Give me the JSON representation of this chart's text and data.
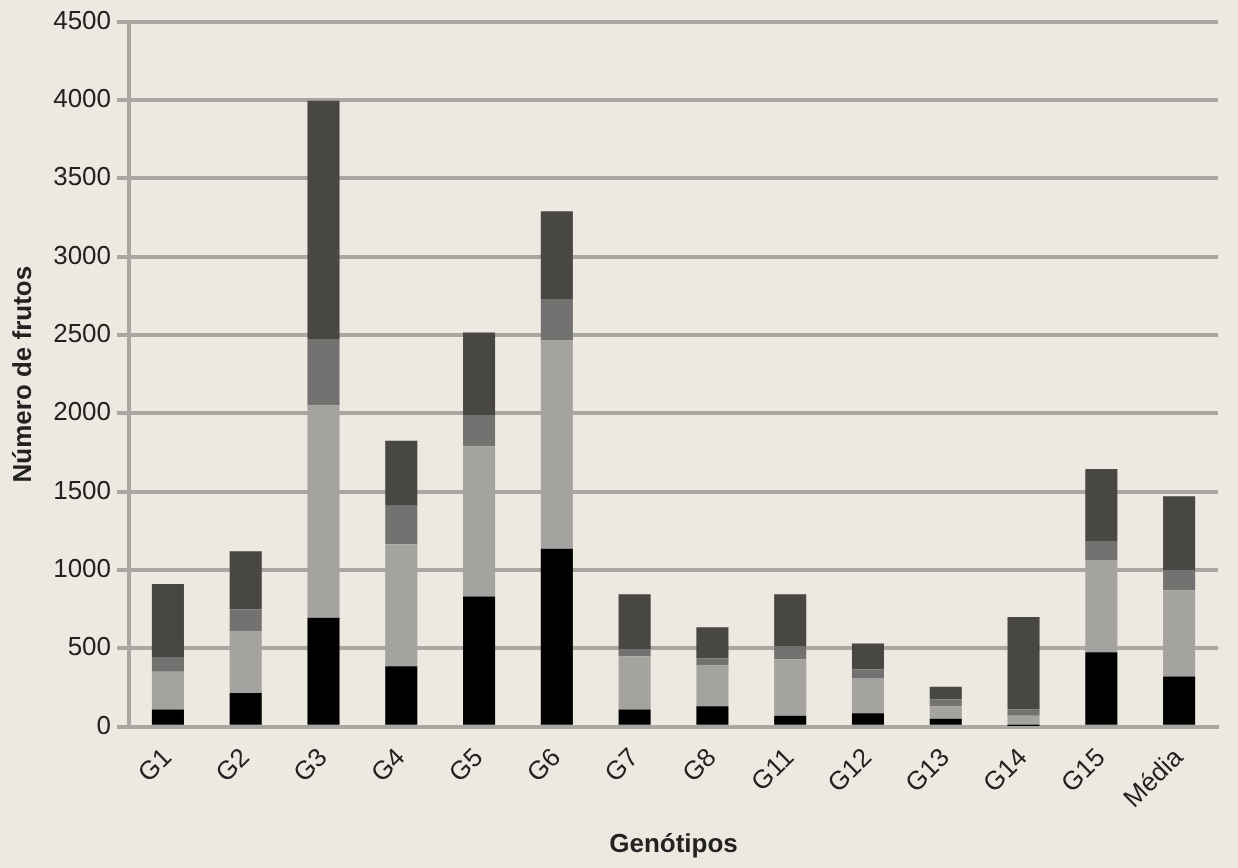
{
  "chart_data": {
    "type": "bar",
    "stacked": true,
    "xlabel": "Genótipos",
    "ylabel": "Número de frutos",
    "categories": [
      "G1",
      "G2",
      "G3",
      "G4",
      "G5",
      "G6",
      "G7",
      "G8",
      "G11",
      "G12",
      "G13",
      "G14",
      "G15",
      "Média"
    ],
    "series": [
      {
        "color": "#000000",
        "values": [
          110,
          215,
          695,
          385,
          830,
          1135,
          110,
          130,
          70,
          85,
          50,
          5,
          475,
          320
        ]
      },
      {
        "color": "#a5a39f",
        "values": [
          240,
          395,
          1355,
          780,
          960,
          1330,
          340,
          260,
          360,
          225,
          80,
          65,
          585,
          550
        ]
      },
      {
        "color": "#737270",
        "values": [
          90,
          140,
          420,
          245,
          195,
          265,
          45,
          45,
          85,
          55,
          45,
          40,
          120,
          130
        ]
      },
      {
        "color": "#484744",
        "values": [
          470,
          370,
          1525,
          415,
          530,
          560,
          350,
          200,
          330,
          165,
          80,
          590,
          465,
          470
        ]
      }
    ],
    "ylim": [
      0,
      4500
    ],
    "yticks": [
      0,
      500,
      1000,
      1500,
      2000,
      2500,
      3000,
      3500,
      4000,
      4500
    ],
    "grid": "y",
    "legend": false
  }
}
